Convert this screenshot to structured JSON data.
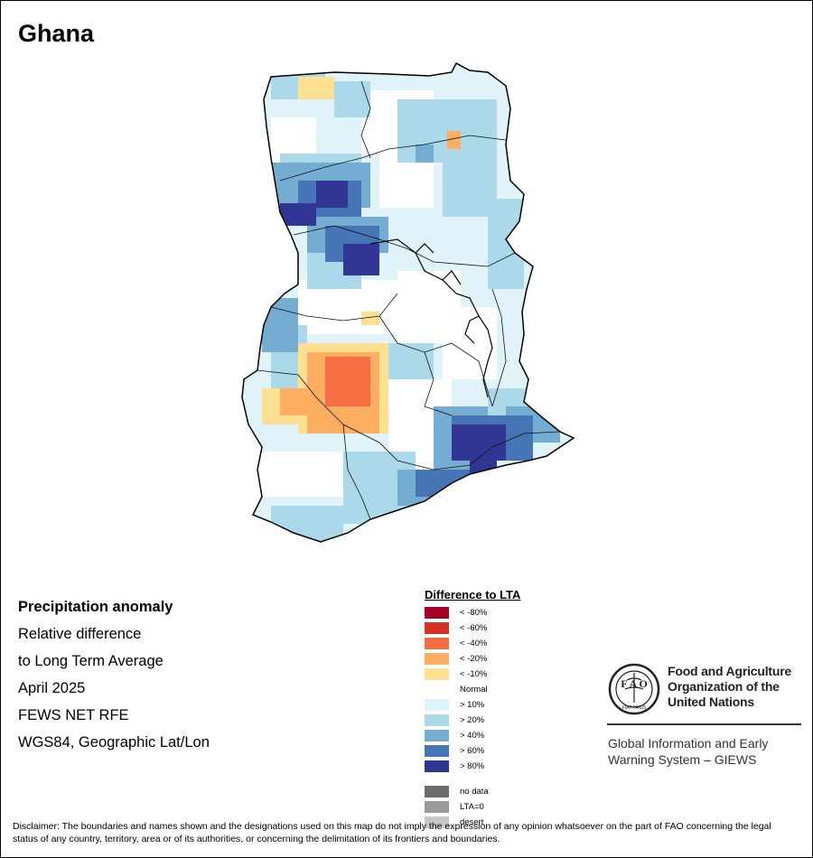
{
  "map": {
    "title": "Ghana"
  },
  "info_block": {
    "heading": "Precipitation anomaly",
    "lines": [
      "Relative difference",
      "to Long Term Average",
      "April 2025",
      "FEWS NET RFE",
      "WGS84, Geographic Lat/Lon"
    ]
  },
  "legend": {
    "title": "Difference to LTA",
    "entries": [
      {
        "label": "< -80%",
        "color": "#a50026"
      },
      {
        "label": "< -60%",
        "color": "#d73027"
      },
      {
        "label": "< -40%",
        "color": "#f46d43"
      },
      {
        "label": "< -20%",
        "color": "#fdae61"
      },
      {
        "label": "< -10%",
        "color": "#fee090"
      },
      {
        "label": "Normal",
        "color": "#ffffff"
      },
      {
        "label": "> 10%",
        "color": "#e0f3f8"
      },
      {
        "label": "> 20%",
        "color": "#abd9e9"
      },
      {
        "label": "> 40%",
        "color": "#74add1"
      },
      {
        "label": "> 60%",
        "color": "#4575b4"
      },
      {
        "label": "> 80%",
        "color": "#313695"
      }
    ],
    "extra": [
      {
        "label": "no data",
        "color": "#6b6b6b"
      },
      {
        "label": "LTA=0",
        "color": "#9a9a9a"
      },
      {
        "label": "desert",
        "color": "#c8c8c8"
      }
    ]
  },
  "branding": {
    "fao_name": [
      "Food and Agriculture",
      "Organization of the",
      "United Nations"
    ],
    "logo_text": "FIAT PANIS",
    "giews": [
      "Global Information and Early",
      "Warning System – GIEWS"
    ]
  },
  "disclaimer": "Disclaimer: The boundaries and names shown and the designations used on this map do not imply the expression of any opinion whatsoever on the part of FAO concerning the legal status of any country, territory, area or of its authorities, or concerning the delimitation of its frontiers and boundaries."
}
